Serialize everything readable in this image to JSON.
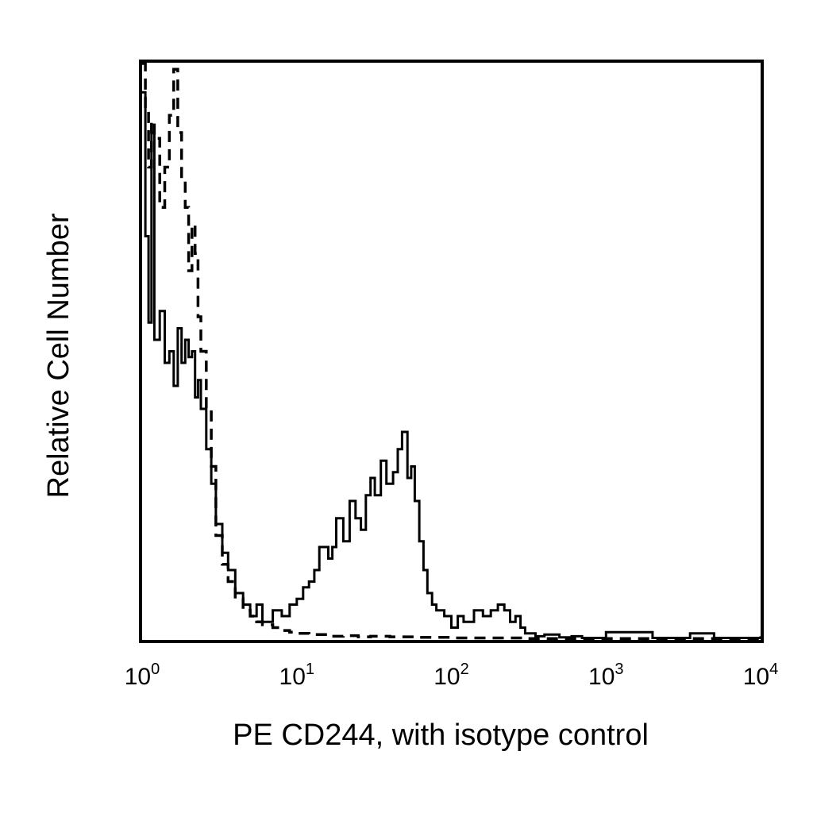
{
  "chart_data": {
    "type": "line",
    "title": "",
    "xlabel": "PE CD244, with isotype control",
    "ylabel": "Relative Cell Number",
    "xscale": "log",
    "xlim": [
      1,
      10000
    ],
    "ylim": [
      0,
      100
    ],
    "grid": false,
    "legend": "none",
    "x_ticks": [
      {
        "base": "10",
        "exp": "0",
        "value": 1
      },
      {
        "base": "10",
        "exp": "1",
        "value": 10
      },
      {
        "base": "10",
        "exp": "2",
        "value": 100
      },
      {
        "base": "10",
        "exp": "3",
        "value": 1000
      },
      {
        "base": "10",
        "exp": "4",
        "value": 10000
      }
    ],
    "series": [
      {
        "style": "solid",
        "x": [
          1.0,
          1.05,
          1.1,
          1.15,
          1.2,
          1.3,
          1.4,
          1.5,
          1.6,
          1.7,
          1.8,
          1.9,
          2.0,
          2.1,
          2.2,
          2.3,
          2.4,
          2.6,
          2.8,
          3.0,
          3.3,
          3.6,
          4.0,
          4.5,
          5.0,
          5.5,
          6.0,
          7.0,
          8.0,
          9.0,
          10,
          11,
          12,
          13,
          14,
          15,
          16,
          17,
          18,
          20,
          22,
          24,
          26,
          28,
          30,
          32,
          35,
          38,
          42,
          45,
          48,
          50,
          52,
          55,
          58,
          62,
          66,
          70,
          75,
          80,
          90,
          100,
          110,
          120,
          140,
          160,
          180,
          200,
          220,
          240,
          260,
          280,
          300,
          350,
          400,
          500,
          600,
          700,
          1000,
          2000,
          3000,
          3500,
          5000,
          8000,
          10000
        ],
        "y": [
          95,
          70,
          55,
          88,
          52,
          57,
          48,
          50,
          44,
          54,
          48,
          52,
          49,
          50,
          42,
          45,
          40,
          33,
          27,
          20,
          15,
          12,
          8,
          6,
          4,
          6,
          3,
          5,
          4,
          6,
          7,
          9,
          10,
          12,
          16,
          16,
          14,
          16,
          21,
          17,
          24,
          21,
          19,
          25,
          28,
          25,
          31,
          27,
          29,
          33,
          36,
          36,
          28,
          30,
          24,
          17,
          12,
          8,
          6,
          5,
          4,
          2,
          4,
          3,
          5,
          4,
          5,
          6,
          5,
          3,
          4,
          2,
          1,
          0.5,
          0.8,
          0.3,
          0.5,
          0.2,
          1.2,
          0.2,
          0.2,
          1.0,
          0.2,
          0.2,
          0.5
        ]
      },
      {
        "style": "dashed",
        "x": [
          1.0,
          1.05,
          1.1,
          1.15,
          1.2,
          1.3,
          1.4,
          1.5,
          1.6,
          1.7,
          1.8,
          1.9,
          2.0,
          2.1,
          2.2,
          2.3,
          2.4,
          2.6,
          2.8,
          3.0,
          3.3,
          3.6,
          4.0,
          4.5,
          5.0,
          5.5,
          6.0,
          7.0,
          8.0,
          9.0,
          10,
          12,
          14,
          16,
          20,
          25,
          30,
          40,
          50,
          60,
          80,
          100,
          150,
          200,
          300,
          400,
          600,
          1000,
          3500,
          10000
        ],
        "y": [
          100,
          92,
          82,
          90,
          87,
          75,
          82,
          91,
          99,
          88,
          80,
          75,
          64,
          72,
          67,
          56,
          50,
          40,
          30,
          18,
          13,
          10,
          7,
          5,
          4,
          3,
          2.5,
          2,
          1.5,
          1.2,
          1,
          0.8,
          0.8,
          0.5,
          0.6,
          0.4,
          0.5,
          0.4,
          0.4,
          0.3,
          0.3,
          0.2,
          0.2,
          0.2,
          0.1,
          0.1,
          0.1,
          0.1,
          0.1,
          0.1
        ]
      }
    ]
  }
}
